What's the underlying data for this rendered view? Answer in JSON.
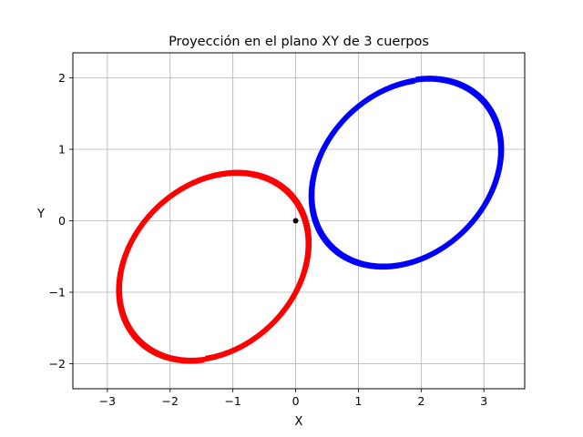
{
  "chart_data": {
    "type": "line",
    "title": "Proyección en el plano XY de 3 cuerpos",
    "xlabel": "X",
    "ylabel": "Y",
    "xlim": [
      -3.55,
      3.65
    ],
    "ylim": [
      -2.35,
      2.35
    ],
    "xticks": [
      -3,
      -2,
      -1,
      0,
      1,
      2,
      3
    ],
    "yticks": [
      -2,
      -1,
      0,
      1,
      2
    ],
    "xtick_labels": [
      "−3",
      "−2",
      "−1",
      "0",
      "1",
      "2",
      "3"
    ],
    "ytick_labels": [
      "−2",
      "−1",
      "0",
      "1",
      "2"
    ],
    "grid": true,
    "series": [
      {
        "color": "#ff0000",
        "orbit": {
          "center_x": -1.3,
          "center_y": -0.64,
          "semi_major": 1.6,
          "semi_minor": 1.2,
          "tilt_deg": 30
        },
        "turns": 6,
        "start_angle_deg": 241,
        "spread": 0.06
      },
      {
        "color": "#0000ff",
        "orbit": {
          "center_x": 1.76,
          "center_y": 0.67,
          "semi_major": 1.6,
          "semi_minor": 1.2,
          "tilt_deg": 30
        },
        "turns": 6,
        "start_angle_deg": 61,
        "spread": 0.06
      },
      {
        "color": "#000000",
        "points": [
          [
            0,
            0
          ]
        ]
      }
    ]
  }
}
